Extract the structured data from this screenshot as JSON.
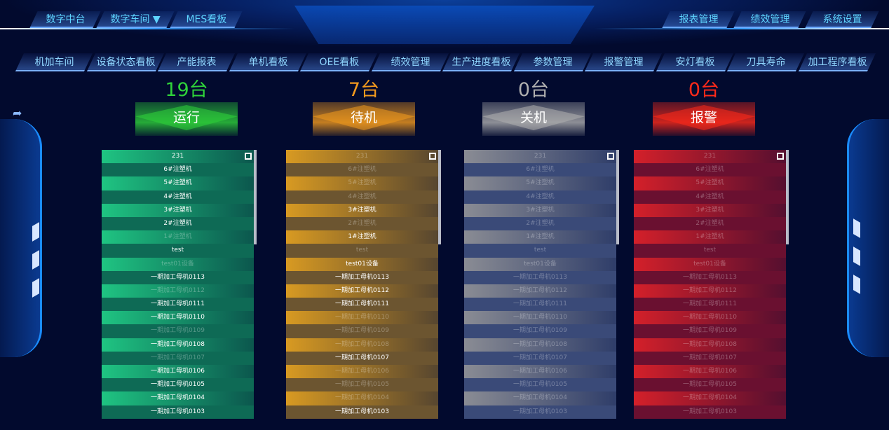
{
  "top_nav_left": [
    "数字中台",
    "数字车间 ▼",
    "MES看板"
  ],
  "top_nav_right": [
    "报表管理",
    "绩效管理",
    "系统设置"
  ],
  "sub_nav": [
    "机加车间",
    "设备状态看板",
    "产能报表",
    "单机看板",
    "OEE看板",
    "绩效管理",
    "生产进度看板",
    "参数管理",
    "报警管理",
    "安灯看板",
    "刀具寿命",
    "加工程序看板"
  ],
  "devices": [
    "231",
    "6#注塑机",
    "5#注塑机",
    "4#注塑机",
    "3#注塑机",
    "2#注塑机",
    "1#注塑机",
    "test",
    "test01设备",
    "一期加工母机0113",
    "一期加工母机0112",
    "一期加工母机0111",
    "一期加工母机0110",
    "一期加工母机0109",
    "一期加工母机0108",
    "一期加工母机0107",
    "一期加工母机0106",
    "一期加工母机0105",
    "一期加工母机0104",
    "一期加工母机0103"
  ],
  "statuses": [
    {
      "count": "19台",
      "label": "运行",
      "color": "#2fd33a",
      "list_a": "#1fc482",
      "list_b": "#0e6a55",
      "highlighted": [
        "231",
        "6#注塑机",
        "5#注塑机",
        "4#注塑机",
        "3#注塑机",
        "2#注塑机",
        "test",
        "一期加工母机0113",
        "一期加工母机0111",
        "一期加工母机0110",
        "一期加工母机0108",
        "一期加工母机0106",
        "一期加工母机0105",
        "一期加工母机0104",
        "一期加工母机0103"
      ]
    },
    {
      "count": "7台",
      "label": "待机",
      "color": "#f39a1e",
      "list_a": "#d89a22",
      "list_b": "#6c5530",
      "highlighted": [
        "3#注塑机",
        "1#注塑机",
        "test01设备",
        "一期加工母机0113",
        "一期加工母机0112",
        "一期加工母机0111",
        "一期加工母机0107",
        "一期加工母机0103"
      ]
    },
    {
      "count": "0台",
      "label": "关机",
      "color": "#b0b0b0",
      "list_a": "#8a8c94",
      "list_b": "#3a4a78",
      "highlighted": []
    },
    {
      "count": "0台",
      "label": "报警",
      "color": "#ff2a1a",
      "list_a": "#d4202a",
      "list_b": "#6a1030",
      "highlighted": []
    }
  ]
}
